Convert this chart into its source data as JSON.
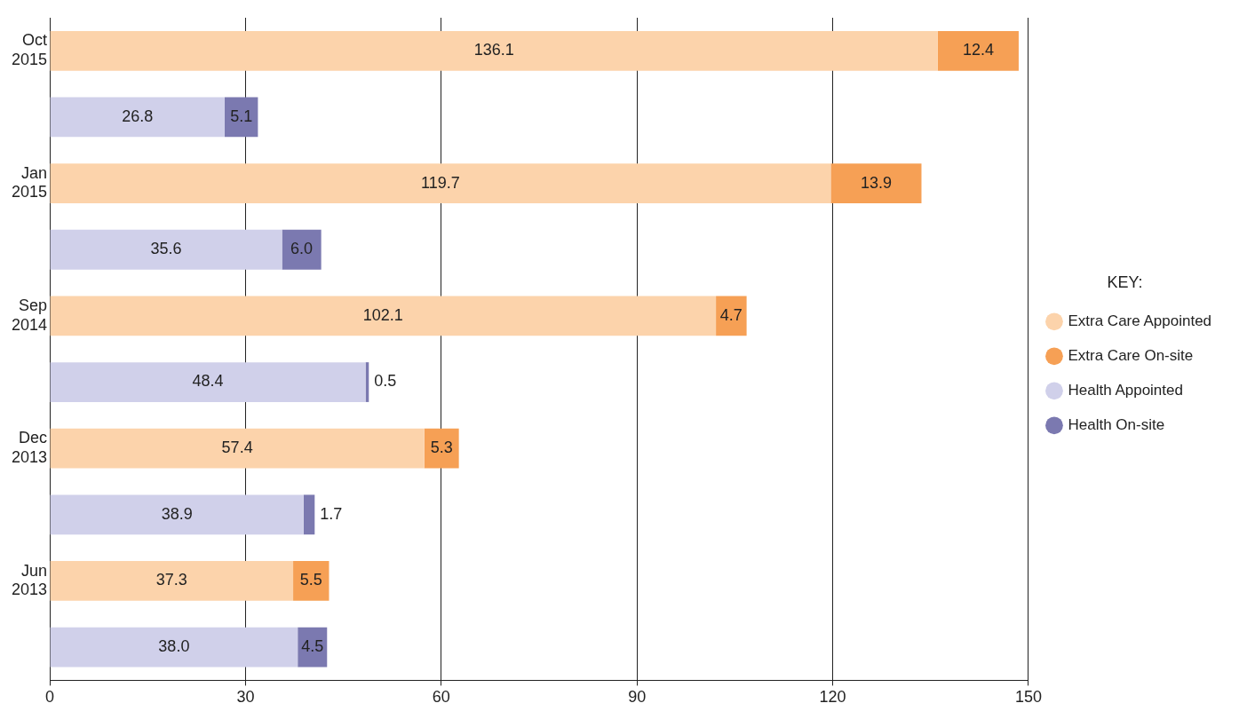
{
  "chart_data": {
    "type": "bar",
    "orientation": "horizontal",
    "stacked": true,
    "categories": [
      "Oct 2015",
      null,
      "Jan 2015",
      null,
      "Sep 2014",
      null,
      "Dec 2013",
      null,
      "Jun 2013",
      null
    ],
    "series": [
      {
        "name": "Extra Care Appointed",
        "color": "#fcd3ab",
        "values": [
          136.1,
          null,
          119.7,
          null,
          102.1,
          null,
          57.4,
          null,
          37.3,
          null
        ],
        "value_labels": [
          "136.1",
          null,
          "119.7",
          null,
          "102.1",
          null,
          "57.4",
          null,
          "37.3",
          null
        ]
      },
      {
        "name": "Extra Care On-site",
        "color": "#f6a055",
        "values": [
          12.4,
          null,
          13.9,
          null,
          4.7,
          null,
          5.3,
          null,
          5.5,
          null
        ],
        "value_labels": [
          "12.4",
          null,
          "13.9",
          null,
          "4.7",
          null,
          "5.3",
          null,
          "5.5",
          null
        ]
      },
      {
        "name": "Health Appointed",
        "color": "#d0d0ea",
        "values": [
          null,
          26.8,
          null,
          35.6,
          null,
          48.4,
          null,
          38.9,
          null,
          38.0
        ],
        "value_labels": [
          null,
          "26.8",
          null,
          "35.6",
          null,
          "48.4",
          null,
          "38.9",
          null,
          "38.0"
        ]
      },
      {
        "name": "Health On-site",
        "color": "#7b79b0",
        "values": [
          null,
          5.1,
          null,
          6.0,
          null,
          0.5,
          null,
          1.7,
          null,
          4.5
        ],
        "value_labels": [
          null,
          "5.1",
          null,
          "6.0",
          null,
          "0.5",
          null,
          "1.7",
          null,
          "4.5"
        ]
      }
    ],
    "xlim": [
      0,
      150
    ],
    "xticks": [
      0,
      30,
      60,
      90,
      120,
      150
    ],
    "grid": "x",
    "legend": "right",
    "legend_title": "KEY:"
  }
}
